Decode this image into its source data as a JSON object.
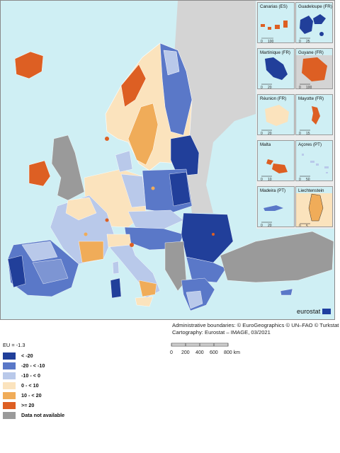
{
  "map": {
    "insets": [
      {
        "name": "Canarias (ES)",
        "scale": [
          "0",
          "100"
        ]
      },
      {
        "name": "Guadeloupe (FR)",
        "scale": [
          "0",
          "25"
        ]
      },
      {
        "name": "Martinique (FR)",
        "scale": [
          "0",
          "20"
        ]
      },
      {
        "name": "Guyane (FR)",
        "scale": [
          "0",
          "100"
        ]
      },
      {
        "name": "Réunion (FR)",
        "scale": [
          "0",
          "20"
        ]
      },
      {
        "name": "Mayotte (FR)",
        "scale": [
          "0",
          "15"
        ]
      },
      {
        "name": "Malta",
        "scale": [
          "0",
          "10"
        ]
      },
      {
        "name": "Açores (PT)",
        "scale": [
          "0",
          "50"
        ]
      },
      {
        "name": "Madeira (PT)",
        "scale": [
          "0",
          "20"
        ]
      },
      {
        "name": "Liechtenstein",
        "scale": [
          "0",
          "5"
        ]
      }
    ],
    "logo_text": "eurostat",
    "credits": [
      "Administrative boundaries: © EuroGeographics © UN–FAO © Turkstat",
      "Cartography: Eurostat – IMAGE, 03/2021"
    ],
    "scalebar": {
      "ticks": [
        "0",
        "200",
        "400",
        "600"
      ],
      "last": "800 km"
    }
  },
  "legend": {
    "title": "EU = -1.3",
    "classes": [
      {
        "label": "< -20",
        "color": "#213f9a"
      },
      {
        "label": "-20 - < -10",
        "color": "#5a78c8"
      },
      {
        "label": "-10 - < 0",
        "color": "#b9c9ea"
      },
      {
        "label": "0 - < 10",
        "color": "#fbe3bd"
      },
      {
        "label": "10 - < 20",
        "color": "#f0ac59"
      },
      {
        "label": ">= 20",
        "color": "#dd5f23"
      },
      {
        "label": "Data not available",
        "color": "#9a9a9a"
      }
    ]
  }
}
